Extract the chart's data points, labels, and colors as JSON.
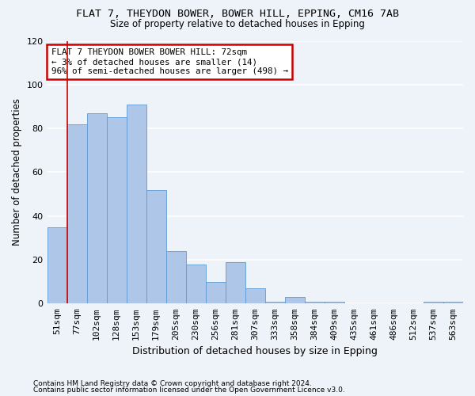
{
  "title1": "FLAT 7, THEYDON BOWER, BOWER HILL, EPPING, CM16 7AB",
  "title2": "Size of property relative to detached houses in Epping",
  "xlabel": "Distribution of detached houses by size in Epping",
  "ylabel": "Number of detached properties",
  "bar_color": "#aec6e8",
  "bar_edge_color": "#5b9bd5",
  "categories": [
    "51sqm",
    "77sqm",
    "102sqm",
    "128sqm",
    "153sqm",
    "179sqm",
    "205sqm",
    "230sqm",
    "256sqm",
    "281sqm",
    "307sqm",
    "333sqm",
    "358sqm",
    "384sqm",
    "409sqm",
    "435sqm",
    "461sqm",
    "486sqm",
    "512sqm",
    "537sqm",
    "563sqm"
  ],
  "values": [
    35,
    82,
    87,
    85,
    91,
    52,
    24,
    18,
    10,
    19,
    7,
    1,
    3,
    1,
    1,
    0,
    0,
    0,
    0,
    1,
    1
  ],
  "annotation_text_line1": "FLAT 7 THEYDON BOWER BOWER HILL: 72sqm",
  "annotation_text_line2": "← 3% of detached houses are smaller (14)",
  "annotation_text_line3": "96% of semi-detached houses are larger (498) →",
  "vline_color": "#cc0000",
  "ylim": [
    0,
    120
  ],
  "yticks": [
    0,
    20,
    40,
    60,
    80,
    100,
    120
  ],
  "footer1": "Contains HM Land Registry data © Crown copyright and database right 2024.",
  "footer2": "Contains public sector information licensed under the Open Government Licence v3.0.",
  "background_color": "#eef2f9",
  "grid_color": "#ffffff"
}
